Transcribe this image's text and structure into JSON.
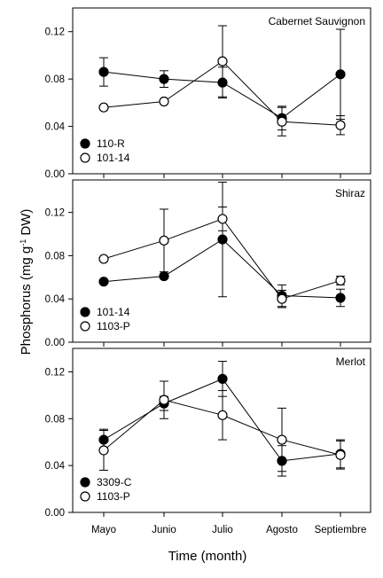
{
  "figure": {
    "y_axis_title": "Phosphorus (mg g",
    "y_axis_title_sup": "-1",
    "y_axis_title_end": " DW)",
    "x_axis_title": "Time (month)"
  },
  "chart_data": [
    {
      "type": "line",
      "title": "Cabernet Sauvignon",
      "categories": [
        "Mayo",
        "Junio",
        "Julio",
        "Agosto",
        "Septiembre"
      ],
      "ylim": [
        0,
        0.14
      ],
      "yticks": [
        "0.00",
        "0.04",
        "0.08",
        "0.12"
      ],
      "ytick_values": [
        0,
        0.04,
        0.08,
        0.12
      ],
      "show_xticklabels": false,
      "series": [
        {
          "name": "110-R",
          "marker": "filled",
          "values": [
            0.086,
            0.08,
            0.077,
            0.047,
            0.084
          ],
          "errors": [
            0.012,
            0.007,
            0.013,
            0.01,
            0.038
          ]
        },
        {
          "name": "101-14",
          "marker": "open",
          "values": [
            0.056,
            0.061,
            0.095,
            0.044,
            0.041
          ],
          "errors": [
            0.0,
            0.0,
            0.03,
            0.012,
            0.008
          ]
        }
      ]
    },
    {
      "type": "line",
      "title": "Shiraz",
      "categories": [
        "Mayo",
        "Junio",
        "Julio",
        "Agosto",
        "Septiembre"
      ],
      "ylim": [
        0,
        0.15
      ],
      "yticks": [
        "0.00",
        "0.04",
        "0.08",
        "0.12"
      ],
      "ytick_values": [
        0,
        0.04,
        0.08,
        0.12
      ],
      "show_xticklabels": false,
      "series": [
        {
          "name": "101-14",
          "marker": "filled",
          "values": [
            0.056,
            0.061,
            0.095,
            0.043,
            0.041
          ],
          "errors": [
            0.0,
            0.0,
            0.053,
            0.01,
            0.008
          ]
        },
        {
          "name": "1103-P",
          "marker": "open",
          "values": [
            0.077,
            0.094,
            0.114,
            0.04,
            0.057
          ],
          "errors": [
            0.0,
            0.029,
            0.011,
            0.008,
            0.004
          ]
        }
      ]
    },
    {
      "type": "line",
      "title": "Merlot",
      "categories": [
        "Mayo",
        "Junio",
        "Julio",
        "Agosto",
        "Septiembre"
      ],
      "ylim": [
        0,
        0.14
      ],
      "yticks": [
        "0.00",
        "0.04",
        "0.08",
        "0.12"
      ],
      "ytick_values": [
        0,
        0.04,
        0.08,
        0.12
      ],
      "show_xticklabels": true,
      "series": [
        {
          "name": "3309-C",
          "marker": "filled",
          "values": [
            0.062,
            0.093,
            0.114,
            0.044,
            0.05
          ],
          "errors": [
            0.009,
            0.006,
            0.015,
            0.013,
            0.012
          ]
        },
        {
          "name": "1103-P",
          "marker": "open",
          "values": [
            0.053,
            0.096,
            0.083,
            0.062,
            0.049
          ],
          "errors": [
            0.017,
            0.016,
            0.021,
            0.027,
            0.012
          ]
        }
      ]
    }
  ]
}
